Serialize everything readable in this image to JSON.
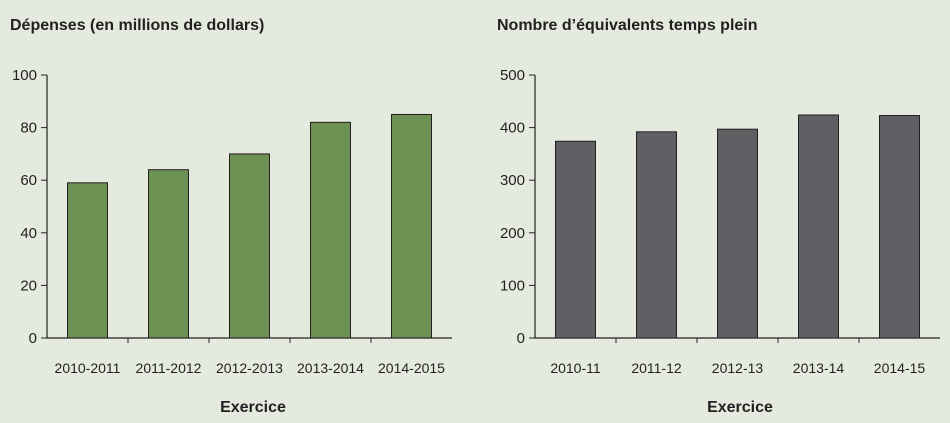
{
  "chart_data": [
    {
      "type": "bar",
      "title": "Dépenses (en millions de dollars)",
      "xlabel": "Exercice",
      "ylabel": "",
      "categories": [
        "2010-2011",
        "2011-2012",
        "2012-2013",
        "2013-2014",
        "2014-2015"
      ],
      "values": [
        59,
        64,
        70,
        82,
        85
      ],
      "ylim": [
        0,
        100
      ],
      "yticks": [
        0,
        20,
        40,
        60,
        80,
        100
      ],
      "bar_color": "#6d9153",
      "grid": false,
      "legend": "none"
    },
    {
      "type": "bar",
      "title": "Nombre d’équivalents temps plein",
      "xlabel": "Exercice",
      "ylabel": "",
      "categories": [
        "2010-11",
        "2011-12",
        "2012-13",
        "2013-14",
        "2014-15"
      ],
      "values": [
        374,
        392,
        397,
        424,
        423
      ],
      "ylim": [
        0,
        500
      ],
      "yticks": [
        0,
        100,
        200,
        300,
        400,
        500
      ],
      "bar_color": "#5f6064",
      "grid": false,
      "legend": "none"
    }
  ]
}
